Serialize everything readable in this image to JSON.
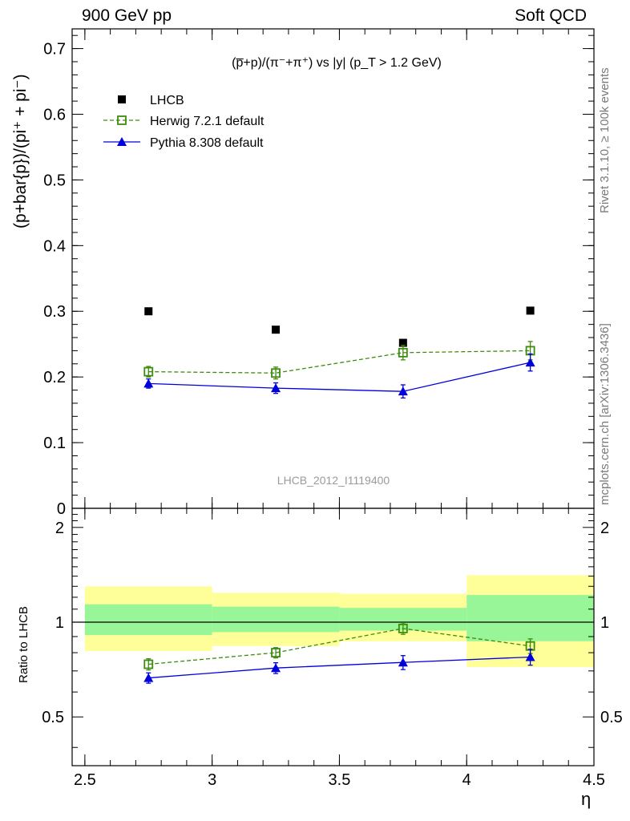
{
  "header": {
    "left": "900 GeV pp",
    "right": "Soft QCD"
  },
  "side_text": {
    "rivet": "Rivet 3.1.10, ≥ 100k events",
    "mcplots": "mcplots.cern.ch [arXiv:1306.3436]"
  },
  "chart_data": [
    {
      "type": "scatter",
      "panel": "main",
      "title": "(p̅+p)/(π⁻+π⁺) vs |y| (p_T > 1.2 GeV)",
      "ylabel": "(p+bar{p})/(pi⁺ + pi⁻)",
      "watermark": "LHCB_2012_I1119400",
      "xlim": [
        2.45,
        4.5
      ],
      "ylim": [
        0,
        0.73
      ],
      "yticks": [
        0,
        0.1,
        0.2,
        0.3,
        0.4,
        0.5,
        0.6,
        0.7
      ],
      "ytick_labels": [
        "0",
        "0.1",
        "0.2",
        "0.3",
        "0.4",
        "0.5",
        "0.6",
        "0.7"
      ],
      "legend": {
        "placement": "top-left"
      },
      "x": [
        2.75,
        3.25,
        3.75,
        4.25
      ],
      "series": [
        {
          "name": "LHCB",
          "style": "data",
          "color": "#000000",
          "values": [
            0.3,
            0.272,
            0.252,
            0.301
          ],
          "errors": [
            0.003,
            0.003,
            0.003,
            0.003
          ]
        },
        {
          "name": "Herwig 7.2.1 default",
          "style": "dashed-open-square",
          "color": "#3c8c0c",
          "values": [
            0.208,
            0.206,
            0.237,
            0.24
          ],
          "errors": [
            0.008,
            0.009,
            0.011,
            0.014
          ]
        },
        {
          "name": "Pythia 8.308 default",
          "style": "solid-triangle",
          "color": "#0000dd",
          "values": [
            0.19,
            0.183,
            0.178,
            0.222
          ],
          "errors": [
            0.007,
            0.008,
            0.01,
            0.013
          ]
        }
      ]
    },
    {
      "type": "scatter",
      "panel": "ratio",
      "ylabel": "Ratio to LHCB",
      "xlabel": "η",
      "xlim": [
        2.45,
        4.5
      ],
      "ylim": [
        0.35,
        2.3
      ],
      "yticks": [
        0.5,
        1,
        2
      ],
      "ytick_labels": [
        "0.5",
        "1",
        "2"
      ],
      "xticks": [
        2.5,
        3,
        3.5,
        4,
        4.5
      ],
      "xtick_labels": [
        "2.5",
        "3",
        "3.5",
        "4",
        "4.5"
      ],
      "uncertainty_bands": {
        "bins": [
          [
            2.5,
            3.0
          ],
          [
            3.0,
            3.5
          ],
          [
            3.5,
            4.0
          ],
          [
            4.0,
            4.5
          ]
        ],
        "inner": [
          [
            0.91,
            1.14
          ],
          [
            0.93,
            1.12
          ],
          [
            0.94,
            1.11
          ],
          [
            0.87,
            1.22
          ]
        ],
        "outer": [
          [
            0.81,
            1.3
          ],
          [
            0.84,
            1.24
          ],
          [
            0.87,
            1.23
          ],
          [
            0.72,
            1.41
          ]
        ],
        "inner_color": "#98f598",
        "outer_color": "#ffff99"
      },
      "x": [
        2.75,
        3.25,
        3.75,
        4.25
      ],
      "series": [
        {
          "name": "Herwig 7.2.1 default",
          "style": "dashed-open-square",
          "color": "#3c8c0c",
          "values": [
            0.735,
            0.8,
            0.955,
            0.84
          ],
          "errors": [
            0.03,
            0.03,
            0.04,
            0.045
          ]
        },
        {
          "name": "Pythia 8.308 default",
          "style": "solid-triangle",
          "color": "#0000dd",
          "values": [
            0.665,
            0.715,
            0.745,
            0.775
          ],
          "errors": [
            0.025,
            0.028,
            0.038,
            0.045
          ]
        }
      ]
    }
  ]
}
